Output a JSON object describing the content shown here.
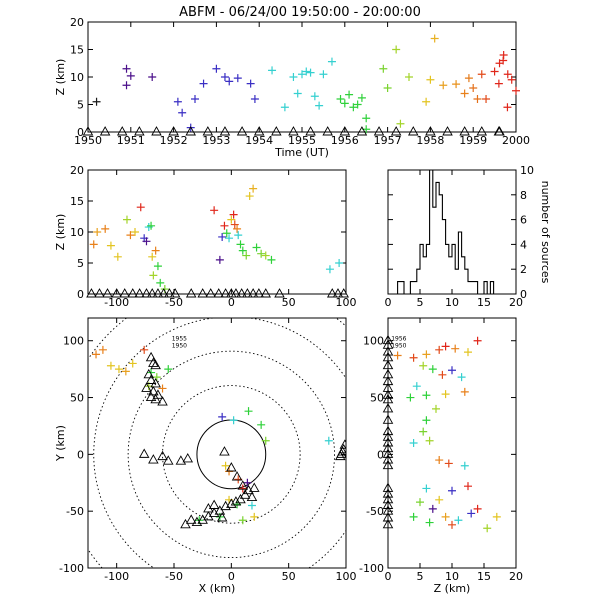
{
  "title": "ABFM - 06/24/00 19:50:00 - 20:00:00",
  "chart_data": [
    {
      "id": "time-height",
      "type": "scatter",
      "xlabel": "Time (UT)",
      "ylabel": "Z (km)",
      "xlim": [
        1950,
        2000
      ],
      "ylim": [
        0,
        20
      ],
      "xticks": [
        "1950",
        "1951",
        "1952",
        "1953",
        "1954",
        "1955",
        "1956",
        "1957",
        "1958",
        "1959",
        "2000"
      ],
      "yticks": [
        0,
        5,
        10,
        15,
        20
      ],
      "points": [
        [
          1950.2,
          5.5,
          "#1a1a1a"
        ],
        [
          1950.9,
          8.5,
          "#4a0f8a"
        ],
        [
          1950.9,
          11.5,
          "#4a0f8a"
        ],
        [
          1951.0,
          10.2,
          "#4a0f8a"
        ],
        [
          1951.5,
          10.0,
          "#4a0f8a"
        ],
        [
          1952.1,
          5.5,
          "#3a2fc4"
        ],
        [
          1952.2,
          3.5,
          "#3a2fc4"
        ],
        [
          1952.4,
          0.8,
          "#3a2fc4"
        ],
        [
          1952.5,
          6.0,
          "#3a2fc4"
        ],
        [
          1952.7,
          8.8,
          "#3a2fc4"
        ],
        [
          1953.0,
          11.5,
          "#3a2fc4"
        ],
        [
          1953.2,
          10.0,
          "#3a2fc4"
        ],
        [
          1953.3,
          9.2,
          "#3a2fc4"
        ],
        [
          1953.5,
          9.8,
          "#3a2fc4"
        ],
        [
          1953.8,
          8.8,
          "#3a2fc4"
        ],
        [
          1953.9,
          6.0,
          "#3a2fc4"
        ],
        [
          1954.3,
          11.2,
          "#35d0d0"
        ],
        [
          1954.6,
          4.5,
          "#35d0d0"
        ],
        [
          1954.8,
          10.0,
          "#35d0d0"
        ],
        [
          1954.9,
          7.0,
          "#35d0d0"
        ],
        [
          1955.0,
          10.5,
          "#35d0d0"
        ],
        [
          1955.1,
          11.0,
          "#35d0d0"
        ],
        [
          1955.2,
          10.8,
          "#35d0d0"
        ],
        [
          1955.3,
          6.5,
          "#35d0d0"
        ],
        [
          1955.4,
          4.8,
          "#35d0d0"
        ],
        [
          1955.5,
          10.5,
          "#35d0d0"
        ],
        [
          1955.7,
          12.8,
          "#35d0d0"
        ],
        [
          1955.9,
          6.0,
          "#2fd13a"
        ],
        [
          1956.0,
          5.2,
          "#2fd13a"
        ],
        [
          1956.1,
          6.8,
          "#2fd13a"
        ],
        [
          1956.2,
          4.5,
          "#2fd13a"
        ],
        [
          1956.3,
          5.0,
          "#2fd13a"
        ],
        [
          1956.4,
          6.2,
          "#2fd13a"
        ],
        [
          1956.5,
          2.5,
          "#2fd13a"
        ],
        [
          1956.5,
          0.5,
          "#2fd13a"
        ],
        [
          1956.9,
          11.5,
          "#7ad32f"
        ],
        [
          1957.0,
          8.0,
          "#7ad32f"
        ],
        [
          1957.2,
          15.0,
          "#a3d42a"
        ],
        [
          1957.3,
          1.5,
          "#a3d42a"
        ],
        [
          1957.5,
          10.0,
          "#a3d42a"
        ],
        [
          1957.9,
          5.5,
          "#e3c420"
        ],
        [
          1958.0,
          9.5,
          "#e3c420"
        ],
        [
          1958.1,
          17.0,
          "#e8b020"
        ],
        [
          1958.3,
          8.5,
          "#e8a020"
        ],
        [
          1958.6,
          8.7,
          "#e8901a"
        ],
        [
          1958.8,
          7.0,
          "#e8801a"
        ],
        [
          1958.9,
          9.8,
          "#e47a1a"
        ],
        [
          1959.0,
          8.0,
          "#e4701a"
        ],
        [
          1959.1,
          6.0,
          "#e4701a"
        ],
        [
          1959.2,
          10.5,
          "#e24a1a"
        ],
        [
          1959.3,
          6.0,
          "#e24a1a"
        ],
        [
          1959.5,
          11.0,
          "#e0261a"
        ],
        [
          1959.6,
          8.8,
          "#e0261a"
        ],
        [
          1959.7,
          13.0,
          "#e0261a"
        ],
        [
          1959.8,
          4.5,
          "#e0261a"
        ],
        [
          1959.9,
          9.5,
          "#e0261a"
        ],
        [
          2000.0,
          12.5,
          "#e0261a"
        ],
        [
          2000.1,
          14.0,
          "#e0261a"
        ],
        [
          2000.2,
          10.5,
          "#e0261a"
        ],
        [
          2000.4,
          7.5,
          "#e0261a"
        ]
      ],
      "ground_triangles": [
        1950.0,
        1950.4,
        1950.8,
        1951.2,
        1951.6,
        1952.0,
        1952.4,
        1952.8,
        1953.2,
        1953.6,
        1954.0,
        1954.4,
        1954.8,
        1955.2,
        1955.6,
        1956.0,
        1956.4,
        1956.8,
        1957.2,
        1957.6,
        1958.0,
        1958.4,
        1958.8,
        1959.2,
        1959.6,
        2000.0
      ]
    },
    {
      "id": "x-height",
      "type": "scatter",
      "xlabel": "",
      "ylabel": "Z (km)",
      "xlim": [
        -125,
        100
      ],
      "ylim": [
        0,
        20
      ],
      "xticks": [
        "-100",
        "-50",
        "0",
        "50",
        "100"
      ],
      "yticks": [
        0,
        5,
        10,
        15,
        20
      ],
      "points": [
        [
          -120,
          8.0,
          "#e8801a"
        ],
        [
          -117,
          10.0,
          "#e8a020"
        ],
        [
          -110,
          10.5,
          "#e8801a"
        ],
        [
          -105,
          7.8,
          "#e3c420"
        ],
        [
          -99,
          6.0,
          "#e3c420"
        ],
        [
          -91,
          12.0,
          "#a3d42a"
        ],
        [
          -88,
          9.5,
          "#e8801a"
        ],
        [
          -84,
          10.0,
          "#e3c420"
        ],
        [
          -79,
          14.0,
          "#e0261a"
        ],
        [
          -76,
          9.0,
          "#3a2fc4"
        ],
        [
          -74,
          8.5,
          "#4a0f8a"
        ],
        [
          -72,
          10.8,
          "#35d0d0"
        ],
        [
          -70,
          11.0,
          "#2fd13a"
        ],
        [
          -69,
          6.0,
          "#e3c420"
        ],
        [
          -66,
          7.0,
          "#e8801a"
        ],
        [
          -64,
          4.5,
          "#2fd13a"
        ],
        [
          -68,
          3.0,
          "#a3d42a"
        ],
        [
          -62,
          1.8,
          "#2fd13a"
        ],
        [
          -58,
          0.8,
          "#7ad32f"
        ],
        [
          -15,
          13.5,
          "#e0261a"
        ],
        [
          -10,
          5.5,
          "#4a0f8a"
        ],
        [
          -8,
          9.2,
          "#3a2fc4"
        ],
        [
          -6,
          11.0,
          "#e0261a"
        ],
        [
          -4,
          9.8,
          "#2fd13a"
        ],
        [
          -2,
          9.0,
          "#35d0d0"
        ],
        [
          0,
          12.0,
          "#e3c420"
        ],
        [
          2,
          12.8,
          "#e0261a"
        ],
        [
          3,
          11.2,
          "#e24a1a"
        ],
        [
          5,
          10.5,
          "#e8801a"
        ],
        [
          6,
          9.5,
          "#35d0d0"
        ],
        [
          8,
          8.0,
          "#2fd13a"
        ],
        [
          10,
          7.0,
          "#2fd13a"
        ],
        [
          13,
          6.2,
          "#7ad32f"
        ],
        [
          16,
          15.8,
          "#e3c420"
        ],
        [
          19,
          17.0,
          "#e8b020"
        ],
        [
          22,
          7.5,
          "#2fd13a"
        ],
        [
          26,
          6.5,
          "#7ad32f"
        ],
        [
          30,
          6.2,
          "#a3d42a"
        ],
        [
          35,
          5.5,
          "#2fd13a"
        ],
        [
          86,
          4.0,
          "#35d0d0"
        ],
        [
          94,
          5.0,
          "#35d0d0"
        ]
      ],
      "ground_triangles": [
        -122,
        -115,
        -108,
        -100,
        -93,
        -86,
        -80,
        -74,
        -69,
        -64,
        -59,
        -54,
        -49,
        -35,
        -25,
        -18,
        -11,
        -5,
        0,
        4,
        9,
        14,
        19,
        24,
        30,
        42,
        88,
        93,
        98
      ]
    },
    {
      "id": "histogram",
      "type": "bar",
      "xlabel": "",
      "ylabel": "number of sources",
      "xlim": [
        0,
        20
      ],
      "ylim": [
        0,
        10
      ],
      "xticks": [
        "0",
        "5",
        "10",
        "15",
        "20"
      ],
      "yticks": [
        "0",
        "2",
        "4",
        "6",
        "8",
        "10"
      ],
      "bin_edges": [
        0,
        0.5,
        1,
        1.5,
        2,
        2.5,
        3,
        3.5,
        4,
        4.5,
        5,
        5.5,
        6,
        6.5,
        7,
        7.5,
        8,
        8.5,
        9,
        9.5,
        10,
        10.5,
        11,
        11.5,
        12,
        12.5,
        13,
        13.5,
        14,
        14.5,
        15,
        15.5,
        16,
        16.5,
        17,
        17.5,
        18,
        18.5,
        19,
        19.5,
        20
      ],
      "counts": [
        0,
        0,
        0,
        1,
        1,
        0,
        0,
        1,
        1,
        2,
        4,
        3,
        4,
        10,
        7,
        9,
        8,
        6,
        4,
        3,
        4,
        2,
        5,
        3,
        2,
        1,
        1,
        1,
        0,
        0,
        1,
        0,
        1,
        0,
        0,
        0,
        0,
        0,
        0,
        0
      ]
    },
    {
      "id": "plan-view",
      "type": "scatter",
      "xlabel": "X (km)",
      "ylabel": "Y (km)",
      "xlim": [
        -125,
        100
      ],
      "ylim": [
        -100,
        120
      ],
      "xticks": [
        "-100",
        "-50",
        "0",
        "50",
        "100"
      ],
      "yticks": [
        "-100",
        "-50",
        "0",
        "50",
        "100"
      ],
      "range_rings_km": [
        30,
        60,
        90,
        120,
        150
      ],
      "annotations": [
        [
          "1955",
          -52,
          100
        ],
        [
          "1950",
          -52,
          94
        ]
      ],
      "points": [
        [
          -112,
          92,
          "#e8801a"
        ],
        [
          -118,
          88,
          "#e8801a"
        ],
        [
          -105,
          78,
          "#e3c420"
        ],
        [
          -98,
          75,
          "#e3c420"
        ],
        [
          -92,
          73,
          "#e8a020"
        ],
        [
          -86,
          80,
          "#e3c420"
        ],
        [
          -76,
          92,
          "#e24a1a"
        ],
        [
          -70,
          72,
          "#2fd13a"
        ],
        [
          -65,
          68,
          "#7ad32f"
        ],
        [
          -55,
          75,
          "#2fd13a"
        ],
        [
          -72,
          60,
          "#a3d42a"
        ],
        [
          -60,
          58,
          "#e8801a"
        ],
        [
          -8,
          33,
          "#3a2fc4"
        ],
        [
          2,
          30,
          "#35d0d0"
        ],
        [
          15,
          38,
          "#2fd13a"
        ],
        [
          26,
          26,
          "#2fd13a"
        ],
        [
          30,
          12,
          "#7ad32f"
        ],
        [
          -5,
          -10,
          "#e3c420"
        ],
        [
          -2,
          -15,
          "#e8801a"
        ],
        [
          6,
          -22,
          "#e24a1a"
        ],
        [
          10,
          -30,
          "#e0261a"
        ],
        [
          14,
          -25,
          "#4a0f8a"
        ],
        [
          -2,
          -40,
          "#e3c420"
        ],
        [
          5,
          -44,
          "#2fd13a"
        ],
        [
          18,
          -45,
          "#35d0d0"
        ],
        [
          -10,
          -55,
          "#2fd13a"
        ],
        [
          10,
          -58,
          "#7ad32f"
        ],
        [
          -28,
          -58,
          "#2fd13a"
        ],
        [
          20,
          -55,
          "#e3c420"
        ],
        [
          85,
          12,
          "#35d0d0"
        ]
      ],
      "triangles": [
        [
          -70,
          85
        ],
        [
          -68,
          80
        ],
        [
          -66,
          78
        ],
        [
          -72,
          70
        ],
        [
          -70,
          65
        ],
        [
          -66,
          62
        ],
        [
          -74,
          58
        ],
        [
          -68,
          55
        ],
        [
          -64,
          52
        ],
        [
          -70,
          50
        ],
        [
          -66,
          48
        ],
        [
          -60,
          46
        ],
        [
          -76,
          0
        ],
        [
          -68,
          -5
        ],
        [
          -60,
          -2
        ],
        [
          -55,
          -6
        ],
        [
          -44,
          -6
        ],
        [
          -38,
          -4
        ],
        [
          -6,
          2
        ],
        [
          0,
          -12
        ],
        [
          5,
          -20
        ],
        [
          10,
          -28
        ],
        [
          15,
          -32
        ],
        [
          12,
          -36
        ],
        [
          8,
          -40
        ],
        [
          4,
          -42
        ],
        [
          0,
          -44
        ],
        [
          -5,
          -46
        ],
        [
          -10,
          -50
        ],
        [
          -15,
          -52
        ],
        [
          -20,
          -55
        ],
        [
          -25,
          -58
        ],
        [
          -30,
          -60
        ],
        [
          -35,
          -58
        ],
        [
          -40,
          -62
        ],
        [
          -20,
          -48
        ],
        [
          -15,
          -45
        ],
        [
          -8,
          -56
        ],
        [
          18,
          -38
        ],
        [
          20,
          -30
        ],
        [
          96,
          0
        ],
        [
          98,
          4
        ],
        [
          99,
          8
        ],
        [
          97,
          2
        ],
        [
          95,
          -2
        ]
      ]
    },
    {
      "id": "z-y",
      "type": "scatter",
      "xlabel": "Z (km)",
      "ylabel": "",
      "xlim": [
        0,
        20
      ],
      "ylim": [
        -100,
        120
      ],
      "xticks": [
        "0",
        "5",
        "10",
        "15",
        "20"
      ],
      "yticks": [
        "-100",
        "-50",
        "0",
        "50",
        "100"
      ],
      "annotations": [
        [
          "1956",
          0.5,
          100
        ],
        [
          "1950",
          0.5,
          94
        ]
      ],
      "points": [
        [
          1.5,
          87,
          "#e8801a"
        ],
        [
          4,
          85,
          "#e24a1a"
        ],
        [
          6,
          88,
          "#e8a020"
        ],
        [
          8,
          92,
          "#e24a1a"
        ],
        [
          9,
          95,
          "#e0261a"
        ],
        [
          10.5,
          93,
          "#e8801a"
        ],
        [
          12.5,
          90,
          "#e3c420"
        ],
        [
          14,
          100,
          "#e0261a"
        ],
        [
          5.5,
          78,
          "#a3d42a"
        ],
        [
          7,
          75,
          "#2fd13a"
        ],
        [
          8.5,
          70,
          "#e24a1a"
        ],
        [
          10,
          74,
          "#3a2fc4"
        ],
        [
          11.5,
          68,
          "#35d0d0"
        ],
        [
          12,
          55,
          "#e8801a"
        ],
        [
          9,
          53,
          "#e3c420"
        ],
        [
          6,
          52,
          "#2fd13a"
        ],
        [
          4.5,
          60,
          "#35d0d0"
        ],
        [
          3.5,
          50,
          "#2fd13a"
        ],
        [
          7.5,
          40,
          "#a3d42a"
        ],
        [
          6,
          30,
          "#2fd13a"
        ],
        [
          5.5,
          20,
          "#7ad32f"
        ],
        [
          6.5,
          12,
          "#a3d42a"
        ],
        [
          4,
          10,
          "#35d0d0"
        ],
        [
          8,
          -5,
          "#e8801a"
        ],
        [
          9.5,
          -8,
          "#e24a1a"
        ],
        [
          12,
          -10,
          "#35d0d0"
        ],
        [
          6,
          -30,
          "#35d0d0"
        ],
        [
          8,
          -40,
          "#e3c420"
        ],
        [
          10,
          -32,
          "#3a2fc4"
        ],
        [
          12.5,
          -28,
          "#e0261a"
        ],
        [
          14,
          -48,
          "#e0261a"
        ],
        [
          13,
          -52,
          "#3a2fc4"
        ],
        [
          11,
          -58,
          "#35d0d0"
        ],
        [
          10,
          -62,
          "#e24a1a"
        ],
        [
          9,
          -55,
          "#e8a020"
        ],
        [
          7,
          -48,
          "#4a0f8a"
        ],
        [
          5,
          -42,
          "#7ad32f"
        ],
        [
          4,
          -55,
          "#2fd13a"
        ],
        [
          6.5,
          -60,
          "#2fd13a"
        ],
        [
          15.5,
          -65,
          "#a3d42a"
        ],
        [
          17,
          -55,
          "#e3c420"
        ]
      ],
      "ground_triangles": [
        -62,
        -56,
        -50,
        -45,
        -40,
        -35,
        -30,
        -10,
        -5,
        0,
        5,
        10,
        15,
        20,
        30,
        40,
        48,
        52,
        58,
        64,
        70,
        78,
        85,
        90,
        96,
        100
      ]
    }
  ]
}
